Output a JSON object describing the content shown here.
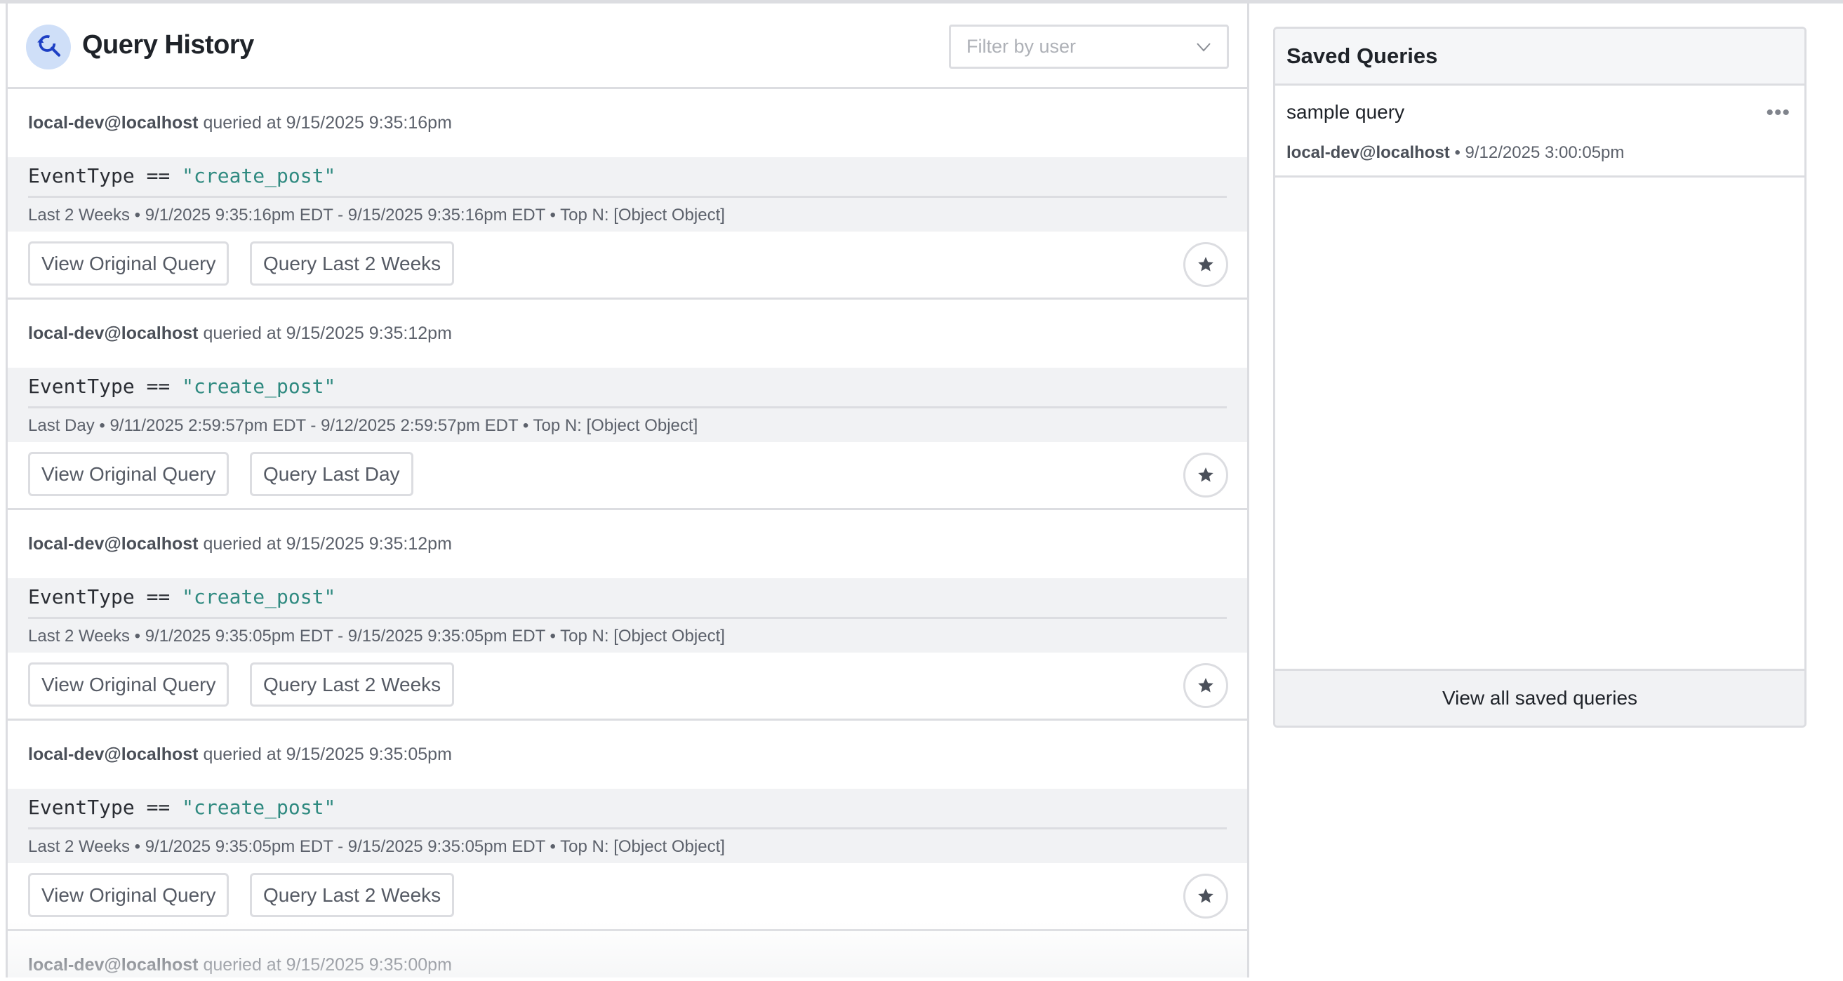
{
  "header": {
    "title": "Query History",
    "filter_placeholder": "Filter by user"
  },
  "entries": [
    {
      "user": "local-dev@localhost",
      "queried_at": "queried at 9/15/2025 9:35:16pm",
      "field": "EventType",
      "op": "==",
      "value": "\"create_post\"",
      "range": "Last 2 Weeks • 9/1/2025 9:35:16pm EDT - 9/15/2025 9:35:16pm EDT • Top N: [Object Object]",
      "view_label": "View Original Query",
      "rerun_label": "Query Last 2 Weeks"
    },
    {
      "user": "local-dev@localhost",
      "queried_at": "queried at 9/15/2025 9:35:12pm",
      "field": "EventType",
      "op": "==",
      "value": "\"create_post\"",
      "range": "Last Day • 9/11/2025 2:59:57pm EDT - 9/12/2025 2:59:57pm EDT • Top N: [Object Object]",
      "view_label": "View Original Query",
      "rerun_label": "Query Last Day"
    },
    {
      "user": "local-dev@localhost",
      "queried_at": "queried at 9/15/2025 9:35:12pm",
      "field": "EventType",
      "op": "==",
      "value": "\"create_post\"",
      "range": "Last 2 Weeks • 9/1/2025 9:35:05pm EDT - 9/15/2025 9:35:05pm EDT • Top N: [Object Object]",
      "view_label": "View Original Query",
      "rerun_label": "Query Last 2 Weeks"
    },
    {
      "user": "local-dev@localhost",
      "queried_at": "queried at 9/15/2025 9:35:05pm",
      "field": "EventType",
      "op": "==",
      "value": "\"create_post\"",
      "range": "Last 2 Weeks • 9/1/2025 9:35:05pm EDT - 9/15/2025 9:35:05pm EDT • Top N: [Object Object]",
      "view_label": "View Original Query",
      "rerun_label": "Query Last 2 Weeks"
    },
    {
      "user": "local-dev@localhost",
      "queried_at": "queried at 9/15/2025 9:35:00pm"
    }
  ],
  "saved": {
    "title": "Saved Queries",
    "items": [
      {
        "name": "sample query",
        "user": "local-dev@localhost",
        "time": "• 9/12/2025 3:00:05pm"
      }
    ],
    "view_all": "View all saved queries"
  },
  "colors": {
    "accent": "#1d3fc4",
    "string": "#2f8a80",
    "icon_bg": "#cfdff8"
  }
}
